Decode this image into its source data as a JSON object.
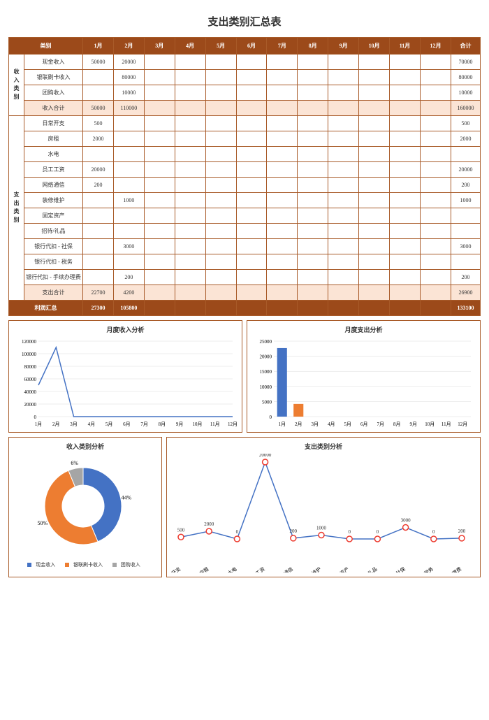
{
  "title": "支出类别汇总表",
  "months": [
    "1月",
    "2月",
    "3月",
    "4月",
    "5月",
    "6月",
    "7月",
    "8月",
    "9月",
    "10月",
    "11月",
    "12月"
  ],
  "header": {
    "category": "类别",
    "total": "合计"
  },
  "incomeGroup": {
    "label": "收入类别",
    "rows": [
      {
        "name": "现金收入",
        "m": [
          "50000",
          "20000",
          "",
          "",
          "",
          "",
          "",
          "",
          "",
          "",
          "",
          ""
        ],
        "total": "70000"
      },
      {
        "name": "银联刷卡收入",
        "m": [
          "",
          "80000",
          "",
          "",
          "",
          "",
          "",
          "",
          "",
          "",
          "",
          ""
        ],
        "total": "80000"
      },
      {
        "name": "团购收入",
        "m": [
          "",
          "10000",
          "",
          "",
          "",
          "",
          "",
          "",
          "",
          "",
          "",
          ""
        ],
        "total": "10000"
      }
    ],
    "subtotal": {
      "name": "收入合计",
      "m": [
        "50000",
        "110000",
        "",
        "",
        "",
        "",
        "",
        "",
        "",
        "",
        "",
        ""
      ],
      "total": "160000"
    }
  },
  "expenseGroup": {
    "label": "支出类别",
    "rows": [
      {
        "name": "日常开支",
        "m": [
          "500",
          "",
          "",
          "",
          "",
          "",
          "",
          "",
          "",
          "",
          "",
          ""
        ],
        "total": "500"
      },
      {
        "name": "房租",
        "m": [
          "2000",
          "",
          "",
          "",
          "",
          "",
          "",
          "",
          "",
          "",
          "",
          ""
        ],
        "total": "2000"
      },
      {
        "name": "水电",
        "m": [
          "",
          "",
          "",
          "",
          "",
          "",
          "",
          "",
          "",
          "",
          "",
          ""
        ],
        "total": ""
      },
      {
        "name": "员工工资",
        "m": [
          "20000",
          "",
          "",
          "",
          "",
          "",
          "",
          "",
          "",
          "",
          "",
          ""
        ],
        "total": "20000"
      },
      {
        "name": "网络通信",
        "m": [
          "200",
          "",
          "",
          "",
          "",
          "",
          "",
          "",
          "",
          "",
          "",
          ""
        ],
        "total": "200"
      },
      {
        "name": "装修维护",
        "m": [
          "",
          "1000",
          "",
          "",
          "",
          "",
          "",
          "",
          "",
          "",
          "",
          ""
        ],
        "total": "1000"
      },
      {
        "name": "固定资产",
        "m": [
          "",
          "",
          "",
          "",
          "",
          "",
          "",
          "",
          "",
          "",
          "",
          ""
        ],
        "total": ""
      },
      {
        "name": "招待/礼品",
        "m": [
          "",
          "",
          "",
          "",
          "",
          "",
          "",
          "",
          "",
          "",
          "",
          ""
        ],
        "total": ""
      },
      {
        "name": "银行代扣 - 社保",
        "m": [
          "",
          "3000",
          "",
          "",
          "",
          "",
          "",
          "",
          "",
          "",
          "",
          ""
        ],
        "total": "3000"
      },
      {
        "name": "银行代扣 - 税务",
        "m": [
          "",
          "",
          "",
          "",
          "",
          "",
          "",
          "",
          "",
          "",
          "",
          ""
        ],
        "total": ""
      },
      {
        "name": "银行代扣 - 手续办理费",
        "m": [
          "",
          "200",
          "",
          "",
          "",
          "",
          "",
          "",
          "",
          "",
          "",
          ""
        ],
        "total": "200"
      }
    ],
    "subtotal": {
      "name": "支出合计",
      "m": [
        "22700",
        "4200",
        "",
        "",
        "",
        "",
        "",
        "",
        "",
        "",
        "",
        ""
      ],
      "total": "26900"
    }
  },
  "profit": {
    "name": "利润汇总",
    "m": [
      "27300",
      "105800",
      "",
      "",
      "",
      "",
      "",
      "",
      "",
      "",
      "",
      ""
    ],
    "total": "133100"
  },
  "chart1": {
    "title": "月度收入分析",
    "type": "line",
    "ylim": [
      0,
      120000
    ],
    "ytick_step": 20000,
    "categories": [
      "1月",
      "2月",
      "3月",
      "4月",
      "5月",
      "6月",
      "7月",
      "8月",
      "9月",
      "10月",
      "11月",
      "12月"
    ],
    "values": [
      50000,
      110000,
      0,
      0,
      0,
      0,
      0,
      0,
      0,
      0,
      0,
      0
    ],
    "line_color": "#4472c4",
    "grid_color": "#d9d9d9",
    "bg": "#ffffff"
  },
  "chart2": {
    "title": "月度支出分析",
    "type": "bar",
    "ylim": [
      0,
      25000
    ],
    "ytick_step": 5000,
    "categories": [
      "1月",
      "2月",
      "3月",
      "4月",
      "5月",
      "6月",
      "7月",
      "8月",
      "9月",
      "10月",
      "11月",
      "12月"
    ],
    "values": [
      22700,
      4200,
      0,
      0,
      0,
      0,
      0,
      0,
      0,
      0,
      0,
      0
    ],
    "bar_colors": [
      "#4472c4",
      "#ed7d31",
      "#a5a5a5",
      "#ffc000",
      "#5b9bd5",
      "#70ad47",
      "#264478",
      "#9e480e",
      "#636363",
      "#997300",
      "#255e91",
      "#43682b"
    ],
    "grid_color": "#d9d9d9"
  },
  "chart3": {
    "title": "收入类别分析",
    "type": "donut",
    "labels": [
      "现金收入",
      "银联刷卡收入",
      "团购收入"
    ],
    "values": [
      70000,
      80000,
      10000
    ],
    "percents": [
      "44%",
      "50%",
      "6%"
    ],
    "colors": [
      "#4472c4",
      "#ed7d31",
      "#a5a5a5"
    ]
  },
  "chart4": {
    "title": "支出类别分析",
    "type": "line-marker",
    "ylim": [
      0,
      20000
    ],
    "categories": [
      "日常开支",
      "房租",
      "水电",
      "员工工资",
      "网络通信",
      "装修维护",
      "固定资产",
      "招待/礼品",
      "银行代扣 - 社保",
      "银行代扣 - 税务",
      "银行代扣 - 手续办理费"
    ],
    "values": [
      500,
      2000,
      0,
      20000,
      200,
      1000,
      0,
      0,
      3000,
      0,
      200
    ],
    "line_color": "#4472c4",
    "marker_fill": "#ffffff",
    "marker_stroke": "#ed3b2f",
    "label_color": "#333333"
  },
  "colors": {
    "border": "#a85a28",
    "header_bg": "#9c4a1a",
    "header_text": "#ffffff",
    "subtotal_bg": "#fbe4d5"
  }
}
